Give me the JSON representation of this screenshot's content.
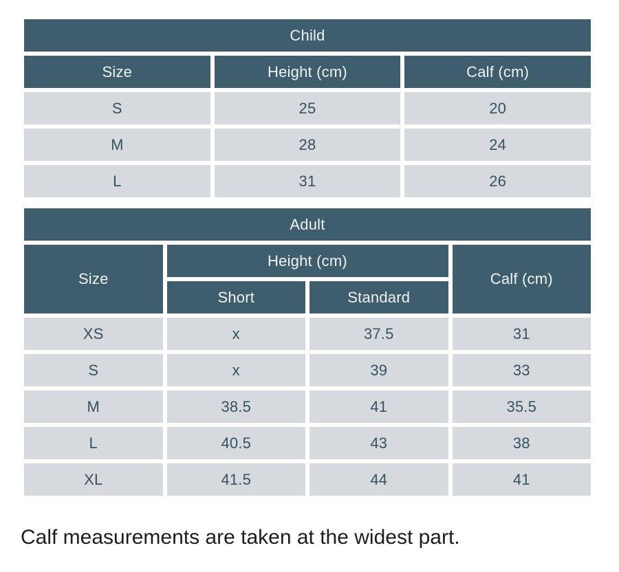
{
  "caption": "Calf measurements are taken at the widest part.",
  "colors": {
    "page_bg": "#ffffff",
    "header_bg": "#3f5e6d",
    "header_text": "#eef3f5",
    "cell_bg": "#d6d9de",
    "cell_text": "#35525f",
    "caption_text": "#1d1d1b"
  },
  "chart_data": [
    {
      "type": "table",
      "title": "Child",
      "columns": [
        "Size",
        "Height (cm)",
        "Calf (cm)"
      ],
      "rows": [
        [
          "S",
          25,
          20
        ],
        [
          "M",
          28,
          24
        ],
        [
          "L",
          31,
          26
        ]
      ]
    },
    {
      "type": "table",
      "title": "Adult",
      "header": {
        "size": "Size",
        "height_group": "Height (cm)",
        "height_sub": [
          "Short",
          "Standard"
        ],
        "calf": "Calf (cm)"
      },
      "columns": [
        "Size",
        "Height (cm) Short",
        "Height (cm) Standard",
        "Calf (cm)"
      ],
      "rows": [
        [
          "XS",
          "x",
          37.5,
          31
        ],
        [
          "S",
          "x",
          39,
          33
        ],
        [
          "M",
          38.5,
          41,
          35.5
        ],
        [
          "L",
          40.5,
          43,
          38
        ],
        [
          "XL",
          41.5,
          44,
          41
        ]
      ]
    }
  ]
}
